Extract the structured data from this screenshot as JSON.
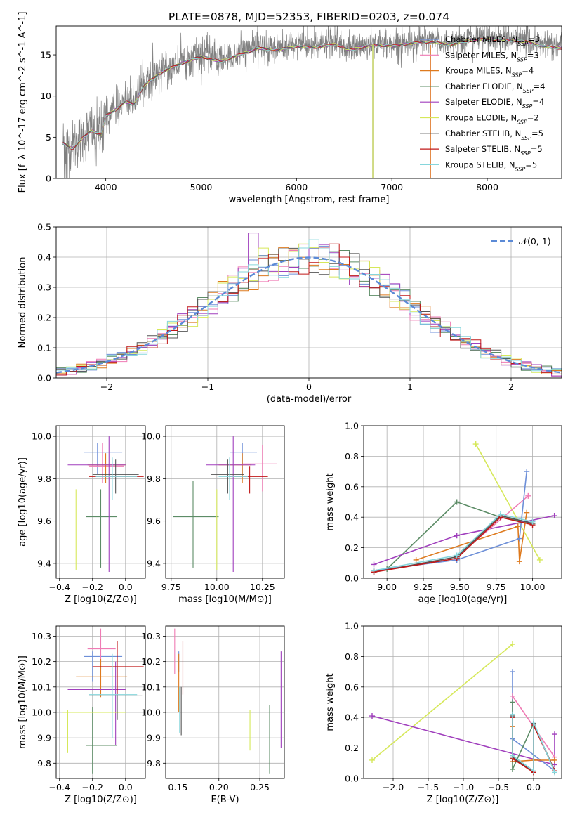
{
  "figure": {
    "title": "PLATE=0878, MJD=52353, FIBERID=0203, z=0.074"
  },
  "series": [
    {
      "name": "Chabrier MILES",
      "nssp": "3",
      "color": "#6d8fd8"
    },
    {
      "name": "Salpeter MILES",
      "nssp": "3",
      "color": "#ef7bb4"
    },
    {
      "name": "Kroupa MILES",
      "nssp": "4",
      "color": "#de7a1e"
    },
    {
      "name": "Chabrier ELODIE",
      "nssp": "4",
      "color": "#5c8c66"
    },
    {
      "name": "Salpeter ELODIE",
      "nssp": "4",
      "color": "#a03fbd"
    },
    {
      "name": "Kroupa ELODIE",
      "nssp": "2",
      "color": "#d6e85a"
    },
    {
      "name": "Chabrier STELIB",
      "nssp": "5",
      "color": "#555555"
    },
    {
      "name": "Salpeter STELIB",
      "nssp": "5",
      "color": "#c01818"
    },
    {
      "name": "Kroupa STELIB",
      "nssp": "5",
      "color": "#86d6dc"
    }
  ],
  "chart_data": [
    {
      "id": "spectrum",
      "type": "line",
      "xlabel": "wavelength [Angstrom, rest frame]",
      "ylabel": "Flux [f_λ 10^-17 erg cm^-2 s^-1 A^-1]",
      "xlim": [
        3480,
        8780
      ],
      "ylim": [
        0,
        18.5
      ],
      "xticks": [
        4000,
        5000,
        6000,
        7000,
        8000
      ],
      "yticks": [
        0,
        5,
        10,
        15
      ],
      "grid": false,
      "legend_position": "right",
      "observed_color": "#808080",
      "continuum_knots": [
        [
          3550,
          4.5
        ],
        [
          3650,
          3.8
        ],
        [
          3750,
          5.0
        ],
        [
          3850,
          6.0
        ],
        [
          3950,
          5.5
        ],
        [
          4000,
          7.8
        ],
        [
          4100,
          8.5
        ],
        [
          4200,
          9.5
        ],
        [
          4300,
          9.2
        ],
        [
          4400,
          11.5
        ],
        [
          4600,
          13.2
        ],
        [
          4800,
          14.2
        ],
        [
          5000,
          15.0
        ],
        [
          5200,
          14.4
        ],
        [
          5400,
          15.2
        ],
        [
          5600,
          16.0
        ],
        [
          5800,
          15.8
        ],
        [
          6000,
          16.2
        ],
        [
          6200,
          16.1
        ],
        [
          6400,
          16.5
        ],
        [
          6563,
          15.8
        ],
        [
          6800,
          16.4
        ],
        [
          7000,
          16.3
        ],
        [
          7200,
          16.6
        ],
        [
          7400,
          16.8
        ],
        [
          7600,
          16.4
        ],
        [
          7800,
          16.9
        ],
        [
          8000,
          17.1
        ],
        [
          8200,
          17.0
        ],
        [
          8400,
          16.8
        ],
        [
          8600,
          16.2
        ],
        [
          8780,
          16.0
        ]
      ]
    },
    {
      "id": "residuals",
      "type": "step",
      "xlabel": "(data-model)/error",
      "ylabel": "Normed distribution",
      "xlim": [
        -2.5,
        2.5
      ],
      "ylim": [
        0,
        0.5
      ],
      "xticks": [
        -2,
        -1,
        0,
        1,
        2
      ],
      "yticks": [
        0.0,
        0.1,
        0.2,
        0.3,
        0.4,
        0.5
      ],
      "grid": true,
      "bin_width": 0.1,
      "reference_curve": {
        "label": "𝒩(0, 1)",
        "color": "#5b8ad6",
        "mu": 0,
        "sigma": 1
      },
      "legend_position": "top-right",
      "spike_bins": [
        {
          "series": "Salpeter ELODIE",
          "x": -0.55,
          "value": 0.48
        },
        {
          "series": "Kroupa ELODIE",
          "x": -0.45,
          "value": 0.43
        }
      ]
    },
    {
      "id": "age_vs_Z",
      "type": "errorbar",
      "xlabel": "Z [log10(Z/Z⊙)]",
      "ylabel": "age [log10(age/yr)]",
      "xlim": [
        -0.42,
        0.12
      ],
      "ylim": [
        9.33,
        10.05
      ],
      "xticks": [
        -0.4,
        -0.2,
        0.0
      ],
      "yticks": [
        9.4,
        9.6,
        9.8,
        10.0
      ],
      "grid": true,
      "points": [
        {
          "series": "Chabrier MILES",
          "x": -0.17,
          "xlo": -0.25,
          "xhi": -0.02,
          "y": 9.925,
          "ylo": 9.82,
          "yhi": 9.97
        },
        {
          "series": "Salpeter MILES",
          "x": -0.14,
          "xlo": -0.22,
          "xhi": -0.01,
          "y": 9.86,
          "ylo": 9.78,
          "yhi": 9.97
        },
        {
          "series": "Kroupa MILES",
          "x": -0.12,
          "xlo": -0.23,
          "xhi": 0.0,
          "y": 9.865,
          "ylo": 9.78,
          "yhi": 9.92
        },
        {
          "series": "Chabrier ELODIE",
          "x": -0.15,
          "xlo": -0.24,
          "xhi": -0.05,
          "y": 9.62,
          "ylo": 9.38,
          "yhi": 9.75
        },
        {
          "series": "Salpeter ELODIE",
          "x": -0.1,
          "xlo": -0.35,
          "xhi": 0.0,
          "y": 9.865,
          "ylo": 9.36,
          "yhi": 10.0
        },
        {
          "series": "Kroupa ELODIE",
          "x": -0.3,
          "xlo": -0.38,
          "xhi": 0.01,
          "y": 9.69,
          "ylo": 9.37,
          "yhi": 9.75
        },
        {
          "series": "Chabrier STELIB",
          "x": -0.06,
          "xlo": -0.2,
          "xhi": 0.08,
          "y": 9.82,
          "ylo": 9.73,
          "yhi": 9.89
        },
        {
          "series": "Salpeter STELIB",
          "x": -0.08,
          "xlo": -0.22,
          "xhi": 0.11,
          "y": 9.81,
          "ylo": 9.74,
          "yhi": 9.86
        },
        {
          "series": "Kroupa STELIB",
          "x": -0.08,
          "xlo": -0.18,
          "xhi": 0.07,
          "y": 9.81,
          "ylo": 9.7,
          "yhi": 9.9
        }
      ]
    },
    {
      "id": "age_vs_mass",
      "type": "errorbar",
      "xlabel": "mass [log10(M/M⊙)]",
      "ylabel": "",
      "xlim": [
        9.72,
        10.37
      ],
      "ylim": [
        9.33,
        10.05
      ],
      "xticks": [
        9.75,
        10.0,
        10.25
      ],
      "yticks": [
        9.4,
        9.6,
        9.8,
        10.0
      ],
      "grid": true,
      "points": [
        {
          "series": "Chabrier MILES",
          "x": 10.14,
          "xlo": 10.07,
          "xhi": 10.22,
          "y": 9.925,
          "ylo": 9.82,
          "yhi": 9.97
        },
        {
          "series": "Salpeter MILES",
          "x": 10.25,
          "xlo": 10.14,
          "xhi": 10.33,
          "y": 9.87,
          "ylo": 9.74,
          "yhi": 9.96
        },
        {
          "series": "Kroupa MILES",
          "x": 10.14,
          "xlo": 10.01,
          "xhi": 10.19,
          "y": 9.865,
          "ylo": 9.78,
          "yhi": 9.92
        },
        {
          "series": "Chabrier ELODIE",
          "x": 9.87,
          "xlo": 9.76,
          "xhi": 10.01,
          "y": 9.62,
          "ylo": 9.38,
          "yhi": 9.79
        },
        {
          "series": "Salpeter ELODIE",
          "x": 10.09,
          "xlo": 9.94,
          "xhi": 10.21,
          "y": 9.865,
          "ylo": 9.36,
          "yhi": 10.0
        },
        {
          "series": "Kroupa ELODIE",
          "x": 10.0,
          "xlo": 9.95,
          "xhi": 10.02,
          "y": 9.69,
          "ylo": 9.37,
          "yhi": 9.75
        },
        {
          "series": "Chabrier STELIB",
          "x": 10.06,
          "xlo": 9.97,
          "xhi": 10.15,
          "y": 9.82,
          "ylo": 9.73,
          "yhi": 9.89
        },
        {
          "series": "Salpeter STELIB",
          "x": 10.18,
          "xlo": 10.07,
          "xhi": 10.28,
          "y": 9.81,
          "ylo": 9.73,
          "yhi": 9.86
        },
        {
          "series": "Kroupa STELIB",
          "x": 10.07,
          "xlo": 10.01,
          "xhi": 10.17,
          "y": 9.81,
          "ylo": 9.7,
          "yhi": 9.9
        }
      ]
    },
    {
      "id": "weight_vs_age",
      "type": "line",
      "xlabel": "age [log10(age/yr)]",
      "ylabel": "mass weight",
      "xlim": [
        8.84,
        10.2
      ],
      "ylim": [
        0,
        1.0
      ],
      "xticks": [
        9.0,
        9.25,
        9.5,
        9.75,
        10.0
      ],
      "yticks": [
        0.0,
        0.2,
        0.4,
        0.6,
        0.8,
        1.0
      ],
      "grid": true,
      "lines": [
        {
          "series": "Kroupa ELODIE",
          "x": [
            9.61,
            10.05
          ],
          "y": [
            0.88,
            0.12
          ]
        },
        {
          "series": "Chabrier ELODIE",
          "x": [
            8.91,
            9.0,
            9.48,
            9.78,
            10.0
          ],
          "y": [
            0.05,
            0.06,
            0.5,
            0.4,
            0.36
          ]
        },
        {
          "series": "Salpeter ELODIE",
          "x": [
            8.91,
            9.48,
            10.15
          ],
          "y": [
            0.09,
            0.28,
            0.41
          ]
        },
        {
          "series": "Kroupa MILES",
          "x": [
            9.2,
            9.9,
            9.91,
            9.96
          ],
          "y": [
            0.12,
            0.34,
            0.11,
            0.43
          ]
        },
        {
          "series": "Salpeter MILES",
          "x": [
            9.48,
            9.97
          ],
          "y": [
            0.14,
            0.54
          ]
        },
        {
          "series": "Chabrier MILES",
          "x": [
            8.91,
            9.48,
            9.91,
            9.96
          ],
          "y": [
            0.05,
            0.12,
            0.26,
            0.7
          ]
        },
        {
          "series": "Chabrier STELIB",
          "x": [
            8.91,
            9.48,
            9.78,
            10.0
          ],
          "y": [
            0.04,
            0.14,
            0.41,
            0.36
          ]
        },
        {
          "series": "Salpeter STELIB",
          "x": [
            8.91,
            9.48,
            9.78,
            10.0
          ],
          "y": [
            0.04,
            0.13,
            0.4,
            0.35
          ]
        },
        {
          "series": "Kroupa STELIB",
          "x": [
            8.91,
            9.48,
            9.78,
            10.0
          ],
          "y": [
            0.05,
            0.15,
            0.42,
            0.37
          ]
        }
      ]
    },
    {
      "id": "mass_vs_Z",
      "type": "errorbar",
      "xlabel": "Z [log10(Z/Z⊙)]",
      "ylabel": "mass [log10(M/M⊙)]",
      "xlim": [
        -0.42,
        0.12
      ],
      "ylim": [
        9.74,
        10.34
      ],
      "xticks": [
        -0.4,
        -0.2,
        0.0
      ],
      "yticks": [
        9.8,
        9.9,
        10.0,
        10.1,
        10.2,
        10.3
      ],
      "grid": true,
      "points": [
        {
          "series": "Chabrier MILES",
          "x": -0.2,
          "xlo": -0.25,
          "xhi": -0.02,
          "y": 10.22,
          "ylo": 10.12,
          "yhi": 10.24
        },
        {
          "series": "Salpeter MILES",
          "x": -0.15,
          "xlo": -0.23,
          "xhi": -0.06,
          "y": 10.25,
          "ylo": 10.17,
          "yhi": 10.33
        },
        {
          "series": "Kroupa MILES",
          "x": -0.15,
          "xlo": -0.3,
          "xhi": 0.01,
          "y": 10.14,
          "ylo": 10.06,
          "yhi": 10.21
        },
        {
          "series": "Chabrier ELODIE",
          "x": -0.2,
          "xlo": -0.24,
          "xhi": -0.05,
          "y": 9.87,
          "ylo": 9.76,
          "yhi": 10.02
        },
        {
          "series": "Salpeter ELODIE",
          "x": -0.06,
          "xlo": -0.35,
          "xhi": 0.0,
          "y": 10.09,
          "ylo": 9.87,
          "yhi": 10.2
        },
        {
          "series": "Kroupa ELODIE",
          "x": -0.35,
          "xlo": -0.38,
          "xhi": 0.0,
          "y": 10.0,
          "ylo": 9.84,
          "yhi": 10.01
        },
        {
          "series": "Chabrier STELIB",
          "x": -0.05,
          "xlo": -0.22,
          "xhi": 0.1,
          "y": 10.065,
          "ylo": 9.97,
          "yhi": 10.18
        },
        {
          "series": "Salpeter STELIB",
          "x": -0.05,
          "xlo": -0.2,
          "xhi": 0.11,
          "y": 10.18,
          "ylo": 10.07,
          "yhi": 10.28
        },
        {
          "series": "Kroupa STELIB",
          "x": -0.08,
          "xlo": -0.22,
          "xhi": 0.07,
          "y": 10.07,
          "ylo": 9.9,
          "yhi": 10.23
        }
      ]
    },
    {
      "id": "mass_vs_ebv",
      "type": "errorbar",
      "xlabel": "E(B-V)",
      "ylabel": "",
      "xlim": [
        0.135,
        0.28
      ],
      "ylim": [
        9.74,
        10.34
      ],
      "xticks": [
        0.15,
        0.2,
        0.25
      ],
      "yticks": [
        9.8,
        9.9,
        10.0,
        10.1,
        10.2,
        10.3
      ],
      "grid": true,
      "points": [
        {
          "series": "Chabrier MILES",
          "x": 0.151,
          "xlo": 0.151,
          "xhi": 0.151,
          "y": 10.2,
          "ylo": 10.16,
          "yhi": 10.24
        },
        {
          "series": "Salpeter MILES",
          "x": 0.146,
          "xlo": 0.146,
          "xhi": 0.146,
          "y": 10.25,
          "ylo": 10.15,
          "yhi": 10.33
        },
        {
          "series": "Kroupa MILES",
          "x": 0.151,
          "xlo": 0.151,
          "xhi": 0.151,
          "y": 10.1,
          "ylo": 10.0,
          "yhi": 10.23
        },
        {
          "series": "Chabrier ELODIE",
          "x": 0.262,
          "xlo": 0.262,
          "xhi": 0.262,
          "y": 9.88,
          "ylo": 9.76,
          "yhi": 10.03
        },
        {
          "series": "Salpeter ELODIE",
          "x": 0.276,
          "xlo": 0.276,
          "xhi": 0.276,
          "y": 10.09,
          "ylo": 9.86,
          "yhi": 10.24
        },
        {
          "series": "Kroupa ELODIE",
          "x": 0.238,
          "xlo": 0.238,
          "xhi": 0.238,
          "y": 9.93,
          "ylo": 9.85,
          "yhi": 10.01
        },
        {
          "series": "Chabrier STELIB",
          "x": 0.154,
          "xlo": 0.154,
          "xhi": 0.154,
          "y": 10.0,
          "ylo": 9.91,
          "yhi": 10.1
        },
        {
          "series": "Salpeter STELIB",
          "x": 0.156,
          "xlo": 0.156,
          "xhi": 0.156,
          "y": 10.18,
          "ylo": 10.07,
          "yhi": 10.28
        },
        {
          "series": "Kroupa STELIB",
          "x": 0.152,
          "xlo": 0.152,
          "xhi": 0.152,
          "y": 10.05,
          "ylo": 9.92,
          "yhi": 10.1
        }
      ]
    },
    {
      "id": "weight_vs_Z",
      "type": "line",
      "xlabel": "Z [log10(Z/Z⊙)]",
      "ylabel": "mass weight",
      "xlim": [
        -2.42,
        0.4
      ],
      "ylim": [
        0,
        1.0
      ],
      "xticks": [
        -2.0,
        -1.5,
        -1.0,
        -0.5,
        0.0
      ],
      "yticks": [
        0.0,
        0.2,
        0.4,
        0.6,
        0.8,
        1.0
      ],
      "grid": true,
      "lines": [
        {
          "series": "Kroupa ELODIE",
          "x": [
            -2.3,
            -0.3
          ],
          "y": [
            0.12,
            0.88
          ]
        },
        {
          "series": "Salpeter ELODIE",
          "x": [
            -2.3,
            0.3,
            0.3
          ],
          "y": [
            0.41,
            0.09,
            0.29
          ]
        },
        {
          "series": "Chabrier MILES",
          "x": [
            -0.3,
            -0.3,
            0.3
          ],
          "y": [
            0.7,
            0.26,
            0.05
          ]
        },
        {
          "series": "Salpeter MILES",
          "x": [
            -0.3,
            0.3
          ],
          "y": [
            0.54,
            0.14
          ]
        },
        {
          "series": "Kroupa MILES",
          "x": [
            -0.3,
            -0.3,
            0.0,
            0.3
          ],
          "y": [
            0.34,
            0.11,
            0.12,
            0.12
          ]
        },
        {
          "series": "Chabrier ELODIE",
          "x": [
            -0.3,
            -0.3,
            0.0,
            0.3
          ],
          "y": [
            0.5,
            0.06,
            0.36,
            0.05
          ]
        },
        {
          "series": "Chabrier STELIB",
          "x": [
            -0.3,
            -0.3,
            0.0,
            0.0,
            0.3
          ],
          "y": [
            0.41,
            0.14,
            0.04,
            0.36,
            0.05
          ]
        },
        {
          "series": "Salpeter STELIB",
          "x": [
            -0.3,
            -0.3,
            0.0,
            0.0,
            0.3
          ],
          "y": [
            0.4,
            0.13,
            0.04,
            0.35,
            0.05
          ]
        },
        {
          "series": "Kroupa STELIB",
          "x": [
            -0.3,
            -0.3,
            0.0,
            0.0,
            0.3
          ],
          "y": [
            0.42,
            0.15,
            0.05,
            0.37,
            0.04
          ]
        }
      ]
    }
  ]
}
